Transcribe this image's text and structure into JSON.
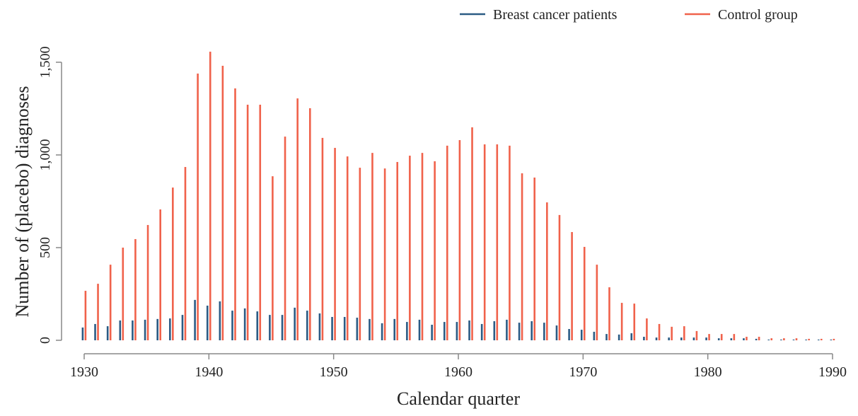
{
  "chart_data": {
    "type": "bar",
    "x_label": "Calendar quarter",
    "y_label": "Number of (placebo) diagnoses",
    "x": [
      1930,
      1931,
      1932,
      1933,
      1934,
      1935,
      1936,
      1937,
      1938,
      1939,
      1940,
      1941,
      1942,
      1943,
      1944,
      1945,
      1946,
      1947,
      1948,
      1949,
      1950,
      1951,
      1952,
      1953,
      1954,
      1955,
      1956,
      1957,
      1958,
      1959,
      1960,
      1961,
      1962,
      1963,
      1964,
      1965,
      1966,
      1967,
      1968,
      1969,
      1970,
      1971,
      1972,
      1973,
      1974,
      1975,
      1976,
      1977,
      1978,
      1979,
      1980,
      1981,
      1982,
      1983,
      1984,
      1985,
      1986,
      1987,
      1988,
      1989,
      1990
    ],
    "series": [
      {
        "name": "Breast cancer patients",
        "color": "#2b5b84",
        "values": [
          69,
          88,
          76,
          107,
          107,
          111,
          115,
          118,
          137,
          218,
          187,
          210,
          160,
          172,
          156,
          137,
          137,
          176,
          160,
          145,
          126,
          126,
          122,
          115,
          92,
          115,
          99,
          111,
          84,
          99,
          99,
          107,
          88,
          103,
          111,
          95,
          103,
          95,
          80,
          61,
          57,
          46,
          34,
          31,
          38,
          19,
          15,
          15,
          15,
          15,
          15,
          11,
          11,
          11,
          8,
          4,
          4,
          4,
          4,
          4,
          4
        ]
      },
      {
        "name": "Control group",
        "color": "#f0624b",
        "values": [
          267,
          305,
          408,
          500,
          546,
          622,
          706,
          824,
          935,
          1439,
          1557,
          1481,
          1359,
          1271,
          1271,
          885,
          1099,
          1305,
          1252,
          1092,
          1038,
          992,
          931,
          1011,
          927,
          962,
          996,
          1011,
          966,
          1050,
          1080,
          1149,
          1057,
          1057,
          1050,
          901,
          878,
          744,
          676,
          584,
          504,
          408,
          286,
          202,
          198,
          118,
          88,
          73,
          76,
          50,
          34,
          34,
          34,
          19,
          19,
          11,
          11,
          11,
          8,
          8,
          8
        ]
      }
    ],
    "xlim": [
      1930,
      1990
    ],
    "xticks": [
      1930,
      1940,
      1950,
      1960,
      1970,
      1980,
      1990
    ],
    "ylim": [
      0,
      1500
    ],
    "yticks": [
      0,
      500,
      {
        "value": 1000,
        "label": "1,000"
      },
      {
        "value": 1500,
        "label": "1,500"
      }
    ],
    "legend": "top-right"
  }
}
